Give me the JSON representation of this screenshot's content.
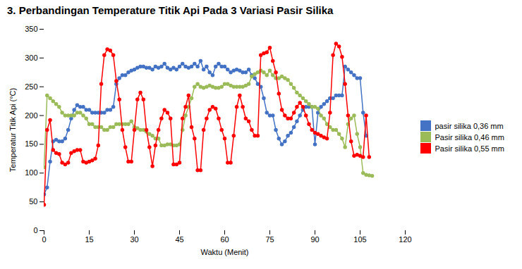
{
  "chart_data": {
    "type": "line",
    "title": "3. Perbandingan Temperature Titik Api Pada 3 Variasi Pasir Silika",
    "xlabel": "Waktu (Menit)",
    "ylabel": "Temperatur Titik Api (°C)",
    "xlim": [
      0,
      120
    ],
    "ylim": [
      0,
      350
    ],
    "xticks": [
      0,
      15,
      30,
      45,
      60,
      75,
      90,
      105,
      120
    ],
    "yticks": [
      0,
      50,
      100,
      150,
      200,
      250,
      300,
      350
    ],
    "grid": false,
    "legend": "right",
    "series": [
      {
        "name": "pasir silika 0,36 mm",
        "color": "#4472C4",
        "marker": "circle",
        "x": [
          0,
          1,
          2,
          3,
          4,
          5,
          6,
          7,
          8,
          9,
          10,
          11,
          12,
          13,
          14,
          15,
          16,
          17,
          18,
          19,
          20,
          21,
          22,
          23,
          24,
          25,
          26,
          27,
          28,
          29,
          30,
          31,
          32,
          33,
          34,
          35,
          36,
          37,
          38,
          39,
          40,
          41,
          42,
          43,
          44,
          45,
          46,
          47,
          48,
          49,
          50,
          51,
          52,
          53,
          54,
          55,
          56,
          57,
          58,
          59,
          60,
          61,
          62,
          63,
          64,
          65,
          66,
          67,
          68,
          69,
          70,
          71,
          72,
          73,
          74,
          75,
          76,
          77,
          78,
          79,
          80,
          81,
          82,
          83,
          84,
          85,
          86,
          87,
          88,
          89,
          90,
          91,
          92,
          93,
          94,
          95,
          96,
          97,
          98,
          99,
          100,
          101,
          102,
          103,
          104,
          105,
          106,
          107
        ],
        "values": [
          63,
          75,
          120,
          155,
          158,
          155,
          155,
          160,
          175,
          195,
          210,
          218,
          215,
          215,
          210,
          210,
          205,
          205,
          205,
          205,
          205,
          210,
          210,
          215,
          255,
          265,
          270,
          270,
          275,
          278,
          280,
          283,
          285,
          285,
          283,
          283,
          280,
          285,
          283,
          285,
          290,
          283,
          280,
          283,
          280,
          285,
          290,
          285,
          283,
          285,
          290,
          285,
          295,
          280,
          285,
          275,
          270,
          285,
          290,
          285,
          285,
          280,
          275,
          278,
          280,
          278,
          275,
          275,
          280,
          270,
          265,
          255,
          250,
          230,
          205,
          200,
          200,
          175,
          160,
          150,
          155,
          165,
          170,
          180,
          190,
          200,
          210,
          215,
          215,
          215,
          150,
          205,
          215,
          220,
          225,
          230,
          230,
          235,
          235,
          235,
          285,
          280,
          275,
          270,
          265,
          265,
          205,
          165
        ]
      },
      {
        "name": "Pasir silika 0,46 mm",
        "color": "#9BBB59",
        "marker": "circle",
        "x": [
          0,
          1,
          2,
          3,
          4,
          5,
          6,
          7,
          8,
          9,
          10,
          11,
          12,
          13,
          14,
          15,
          16,
          17,
          18,
          19,
          20,
          21,
          22,
          23,
          24,
          25,
          26,
          27,
          28,
          29,
          30,
          31,
          32,
          33,
          34,
          35,
          36,
          37,
          38,
          39,
          40,
          41,
          42,
          43,
          44,
          45,
          46,
          47,
          48,
          49,
          50,
          51,
          52,
          53,
          54,
          55,
          56,
          57,
          58,
          59,
          60,
          61,
          62,
          63,
          64,
          65,
          66,
          67,
          68,
          69,
          70,
          71,
          72,
          73,
          74,
          75,
          76,
          77,
          78,
          79,
          80,
          81,
          82,
          83,
          84,
          85,
          86,
          87,
          88,
          89,
          90,
          91,
          92,
          93,
          94,
          95,
          96,
          97,
          98,
          99,
          100,
          101,
          102,
          103,
          104,
          105,
          106,
          107,
          108,
          109
        ],
        "values": [
          110,
          235,
          230,
          225,
          220,
          215,
          205,
          200,
          200,
          200,
          200,
          205,
          205,
          200,
          195,
          185,
          185,
          180,
          180,
          180,
          175,
          175,
          180,
          180,
          185,
          185,
          185,
          185,
          185,
          190,
          180,
          178,
          175,
          175,
          172,
          168,
          165,
          160,
          160,
          148,
          148,
          150,
          150,
          148,
          148,
          150,
          175,
          200,
          215,
          230,
          250,
          255,
          250,
          248,
          250,
          252,
          250,
          248,
          248,
          250,
          255,
          255,
          252,
          250,
          250,
          250,
          250,
          252,
          255,
          268,
          272,
          275,
          278,
          275,
          270,
          278,
          270,
          265,
          265,
          268,
          265,
          262,
          255,
          248,
          240,
          235,
          230,
          225,
          220,
          215,
          215,
          212,
          200,
          195,
          185,
          180,
          175,
          175,
          168,
          160,
          145,
          185,
          195,
          200,
          168,
          145,
          100,
          97,
          96,
          95
        ]
      },
      {
        "name": "Pasir silika 0,55 mm",
        "color": "#FF0000",
        "marker": "circle",
        "x": [
          0,
          1,
          2,
          3,
          4,
          5,
          6,
          7,
          8,
          9,
          10,
          11,
          12,
          13,
          14,
          15,
          16,
          17,
          18,
          19,
          20,
          21,
          22,
          23,
          24,
          25,
          26,
          27,
          28,
          29,
          30,
          31,
          32,
          33,
          34,
          35,
          36,
          37,
          38,
          39,
          40,
          41,
          42,
          43,
          44,
          45,
          46,
          47,
          48,
          49,
          50,
          51,
          52,
          53,
          54,
          55,
          56,
          57,
          58,
          59,
          60,
          61,
          62,
          63,
          64,
          65,
          66,
          67,
          68,
          69,
          70,
          71,
          72,
          73,
          74,
          75,
          76,
          77,
          78,
          79,
          80,
          81,
          82,
          83,
          84,
          85,
          86,
          87,
          88,
          89,
          90,
          91,
          92,
          93,
          94,
          95,
          96,
          97,
          98,
          99,
          100,
          101,
          102,
          103,
          104,
          105,
          106,
          107,
          108
        ],
        "values": [
          45,
          175,
          192,
          140,
          135,
          133,
          118,
          115,
          118,
          135,
          138,
          140,
          140,
          120,
          118,
          120,
          122,
          125,
          148,
          255,
          305,
          315,
          313,
          305,
          260,
          228,
          175,
          145,
          120,
          120,
          175,
          228,
          240,
          228,
          175,
          145,
          112,
          148,
          175,
          195,
          210,
          205,
          195,
          115,
          115,
          118,
          195,
          215,
          235,
          180,
          160,
          105,
          105,
          175,
          195,
          210,
          215,
          212,
          195,
          175,
          160,
          118,
          118,
          165,
          215,
          235,
          215,
          195,
          190,
          175,
          165,
          165,
          305,
          308,
          310,
          318,
          295,
          275,
          238,
          210,
          200,
          195,
          195,
          205,
          215,
          222,
          215,
          200,
          185,
          175,
          170,
          168,
          165,
          162,
          160,
          205,
          305,
          325,
          320,
          302,
          255,
          200,
          155,
          130,
          132,
          130,
          128,
          200,
          128
        ]
      }
    ]
  }
}
